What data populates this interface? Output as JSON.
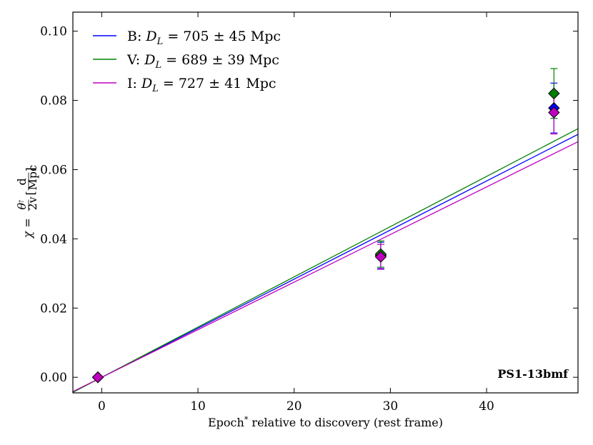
{
  "chart_data": {
    "type": "scatter",
    "annotation": "PS1-13bmf",
    "xlabel_main": "Epoch",
    "xlabel_sup": "*",
    "xlabel_rest": " relative to discovery (rest frame)",
    "ylabel": {
      "lhs": "χ =",
      "frac_num": "θ",
      "frac_num_sup": "†",
      "frac_den": "2v",
      "unit_num": "d",
      "unit_den": "Mpc"
    },
    "xlim": [
      -3,
      49.5
    ],
    "ylim": [
      -0.0045,
      0.1055
    ],
    "xticks": [
      0,
      10,
      20,
      30,
      40
    ],
    "yticks": [
      0.0,
      0.02,
      0.04,
      0.06,
      0.08,
      0.1
    ],
    "ytick_labels": [
      "0.00",
      "0.02",
      "0.04",
      "0.06",
      "0.08",
      "0.10"
    ],
    "series": [
      {
        "name": "B",
        "color": "#0000ff",
        "legend_prefix": "B: ",
        "legend_var": "D",
        "legend_sub": "L",
        "legend_value": " = 705 ± 45 Mpc",
        "slope": 0.001418,
        "points": [
          {
            "x": -0.4,
            "y": 0.0,
            "err": 0.0
          },
          {
            "x": 29.0,
            "y": 0.0352,
            "err": 0.0038
          },
          {
            "x": 47.0,
            "y": 0.0778,
            "err": 0.0072
          }
        ]
      },
      {
        "name": "V",
        "color": "#008000",
        "legend_prefix": "V: ",
        "legend_var": "D",
        "legend_sub": "L",
        "legend_value": " = 689 ± 39 Mpc",
        "slope": 0.001451,
        "points": [
          {
            "x": -0.4,
            "y": 0.0,
            "err": 0.0
          },
          {
            "x": 29.0,
            "y": 0.0356,
            "err": 0.0038
          },
          {
            "x": 47.0,
            "y": 0.082,
            "err": 0.0072
          }
        ]
      },
      {
        "name": "I",
        "color": "#bf00bf",
        "legend_prefix": "I: ",
        "legend_var": "D",
        "legend_sub": "L",
        "legend_value": " = 727 ± 41 Mpc",
        "slope": 0.001375,
        "points": [
          {
            "x": -0.4,
            "y": 0.0,
            "err": 0.0
          },
          {
            "x": 29.0,
            "y": 0.0348,
            "err": 0.0036
          },
          {
            "x": 47.0,
            "y": 0.0765,
            "err": 0.0062
          }
        ]
      }
    ]
  }
}
